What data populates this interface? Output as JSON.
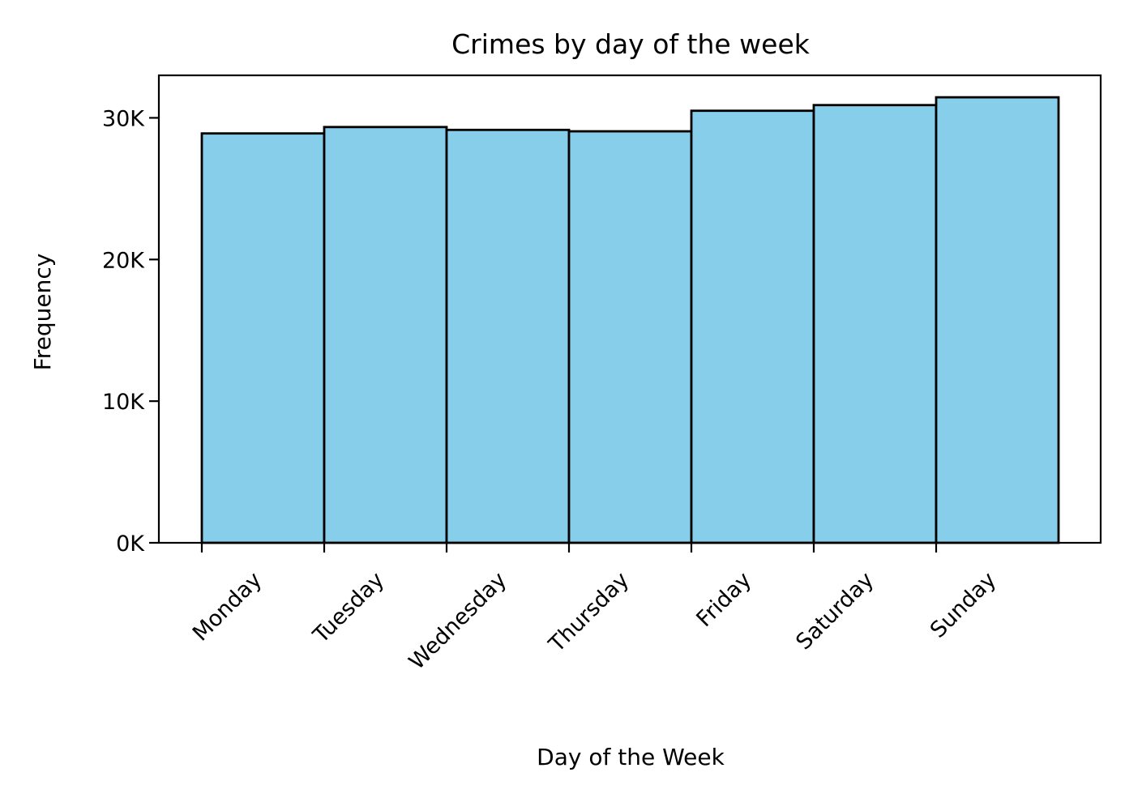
{
  "chart_data": {
    "type": "bar",
    "title": "Crimes by day of the week",
    "xlabel": "Day of the Week",
    "ylabel": "Frequency",
    "categories": [
      "Monday",
      "Tuesday",
      "Wednesday",
      "Thursday",
      "Friday",
      "Saturday",
      "Sunday"
    ],
    "values": [
      28900,
      29350,
      29150,
      29050,
      30500,
      30900,
      31450
    ],
    "ylim": [
      0,
      33000
    ],
    "yticks": [
      0,
      10000,
      20000,
      30000
    ],
    "ytick_labels": [
      "0K",
      "10K",
      "20K",
      "30K"
    ],
    "grid": false,
    "bar_color": "#87CEEB",
    "edge_color": "#000000"
  }
}
